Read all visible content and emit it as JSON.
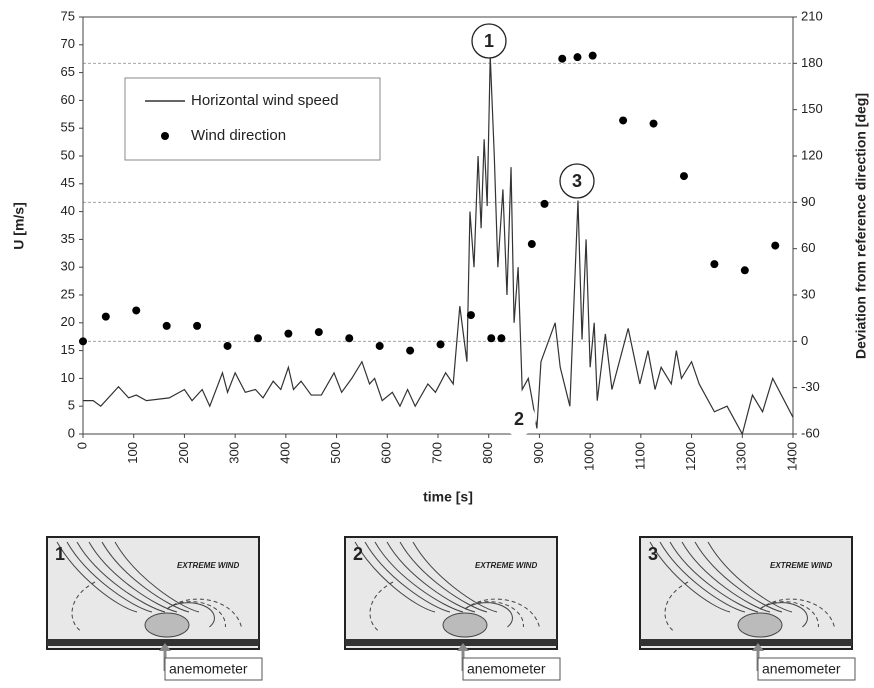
{
  "chart_data": {
    "type": "line",
    "xlabel": "time [s]",
    "ylabel": "U [m/s]",
    "y2label": "Deviation from reference direction [deg]",
    "xlim": [
      0,
      1400
    ],
    "xticks": [
      0,
      100,
      200,
      300,
      400,
      500,
      600,
      700,
      800,
      900,
      1000,
      1100,
      1200,
      1300,
      1400
    ],
    "ylim": [
      0,
      75
    ],
    "yticks": [
      0,
      5,
      10,
      15,
      20,
      25,
      30,
      35,
      40,
      45,
      50,
      55,
      60,
      65,
      70,
      75
    ],
    "y2lim": [
      -60,
      210
    ],
    "y2ticks": [
      -60,
      -30,
      0,
      30,
      60,
      90,
      120,
      150,
      180,
      210
    ],
    "y2grid": [
      0,
      90,
      180
    ],
    "series": [
      {
        "name": "Horizontal wind speed",
        "style": "line",
        "color": "#333333",
        "x": [
          0,
          20,
          35,
          70,
          90,
          105,
          125,
          170,
          200,
          215,
          235,
          250,
          275,
          285,
          300,
          320,
          340,
          355,
          375,
          390,
          405,
          415,
          430,
          450,
          470,
          495,
          510,
          530,
          550,
          565,
          575,
          590,
          610,
          625,
          640,
          655,
          680,
          695,
          715,
          730,
          743,
          757,
          763,
          771,
          779,
          785,
          791,
          797,
          803,
          811,
          818,
          828,
          836,
          844,
          850,
          858,
          866,
          878,
          886,
          895,
          903,
          931,
          941,
          960,
          976,
          984,
          992,
          1000,
          1008,
          1014,
          1030,
          1043,
          1075,
          1098,
          1114,
          1128,
          1140,
          1160,
          1170,
          1180,
          1200,
          1215,
          1245,
          1270,
          1300,
          1320,
          1340,
          1360,
          1400
        ],
        "values": [
          6,
          6,
          5,
          8.5,
          6.5,
          7,
          6,
          6.5,
          8,
          6,
          8,
          5,
          11,
          7.5,
          11,
          7.5,
          8,
          6.5,
          9.5,
          8,
          12,
          8,
          9.5,
          7,
          7,
          11,
          7.5,
          10,
          13,
          9,
          10,
          6,
          7.5,
          5,
          8,
          5,
          9,
          7.5,
          11,
          9,
          23,
          13,
          40,
          30,
          50,
          37,
          53,
          41,
          68,
          50,
          30,
          44,
          25,
          48,
          20,
          30,
          8,
          10,
          6,
          1,
          13,
          20,
          12,
          5,
          42,
          17,
          35,
          12,
          20,
          6,
          18,
          8,
          19,
          9,
          15,
          8,
          12,
          9,
          15,
          10,
          13,
          9,
          4,
          5,
          0,
          7,
          4,
          10,
          3
        ]
      },
      {
        "name": "Wind direction",
        "style": "markers",
        "color": "#000000",
        "axis": "y2",
        "x": [
          0,
          45,
          105,
          165,
          225,
          285,
          345,
          405,
          465,
          525,
          585,
          645,
          705,
          765,
          805,
          825,
          885,
          910,
          945,
          975,
          1005,
          1065,
          1125,
          1185,
          1245,
          1305,
          1365
        ],
        "values": [
          0,
          16,
          20,
          10,
          10,
          -3,
          2,
          5,
          6,
          2,
          -3,
          -6,
          -2,
          17,
          2,
          2,
          63,
          89,
          183,
          184,
          185,
          143,
          141,
          107,
          50,
          46,
          62
        ]
      }
    ],
    "annotations": [
      "1",
      "2",
      "3"
    ],
    "panels": [
      {
        "number": "1",
        "caption": "EXTREME WIND",
        "label": "anemometer"
      },
      {
        "number": "2",
        "caption": "EXTREME WIND",
        "label": "anemometer"
      },
      {
        "number": "3",
        "caption": "EXTREME WIND",
        "label": "anemometer"
      }
    ]
  }
}
